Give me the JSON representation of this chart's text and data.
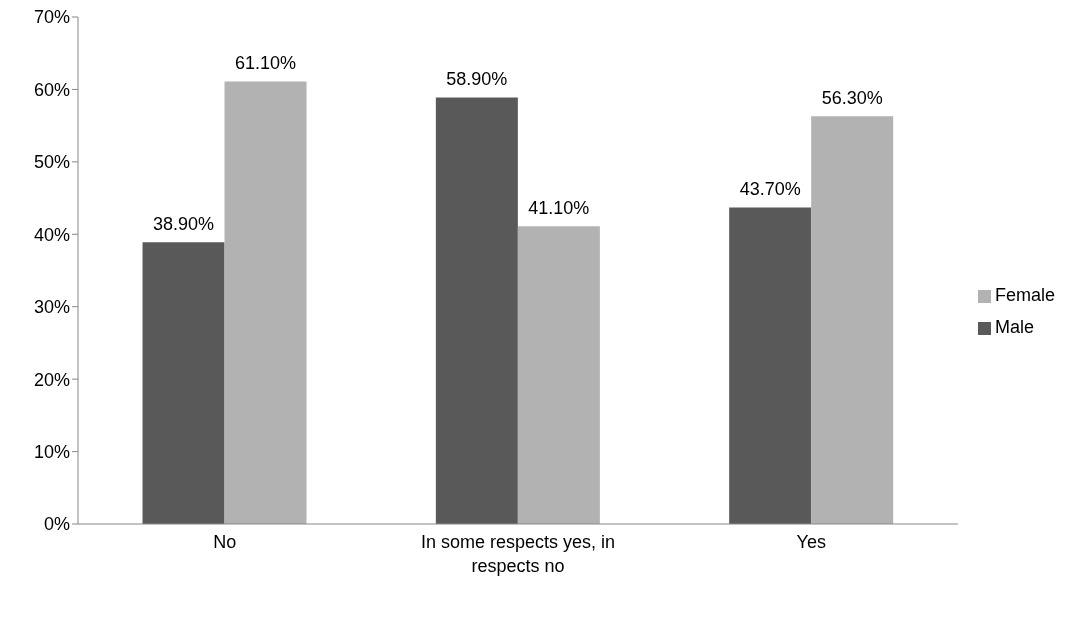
{
  "chart_data": {
    "type": "bar",
    "categories": [
      "No",
      "In some respects yes, in respects no",
      "Yes"
    ],
    "series": [
      {
        "name": "Male",
        "color": "#595959",
        "values": [
          38.9,
          58.9,
          43.7
        ],
        "value_labels": [
          "38.90%",
          "58.90%",
          "43.70%"
        ]
      },
      {
        "name": "Female",
        "color": "#b2b2b2",
        "values": [
          61.1,
          41.1,
          56.3
        ],
        "value_labels": [
          "61.10%",
          "41.10%",
          "56.30%"
        ]
      }
    ],
    "ylim": [
      0,
      70
    ],
    "yticks": [
      {
        "value": 0,
        "label": "0%"
      },
      {
        "value": 10,
        "label": "10%"
      },
      {
        "value": 20,
        "label": "20%"
      },
      {
        "value": 30,
        "label": "30%"
      },
      {
        "value": 40,
        "label": "40%"
      },
      {
        "value": 50,
        "label": "50%"
      },
      {
        "value": 60,
        "label": "60%"
      },
      {
        "value": 70,
        "label": "70%"
      }
    ],
    "grid": false,
    "legend": "right"
  }
}
